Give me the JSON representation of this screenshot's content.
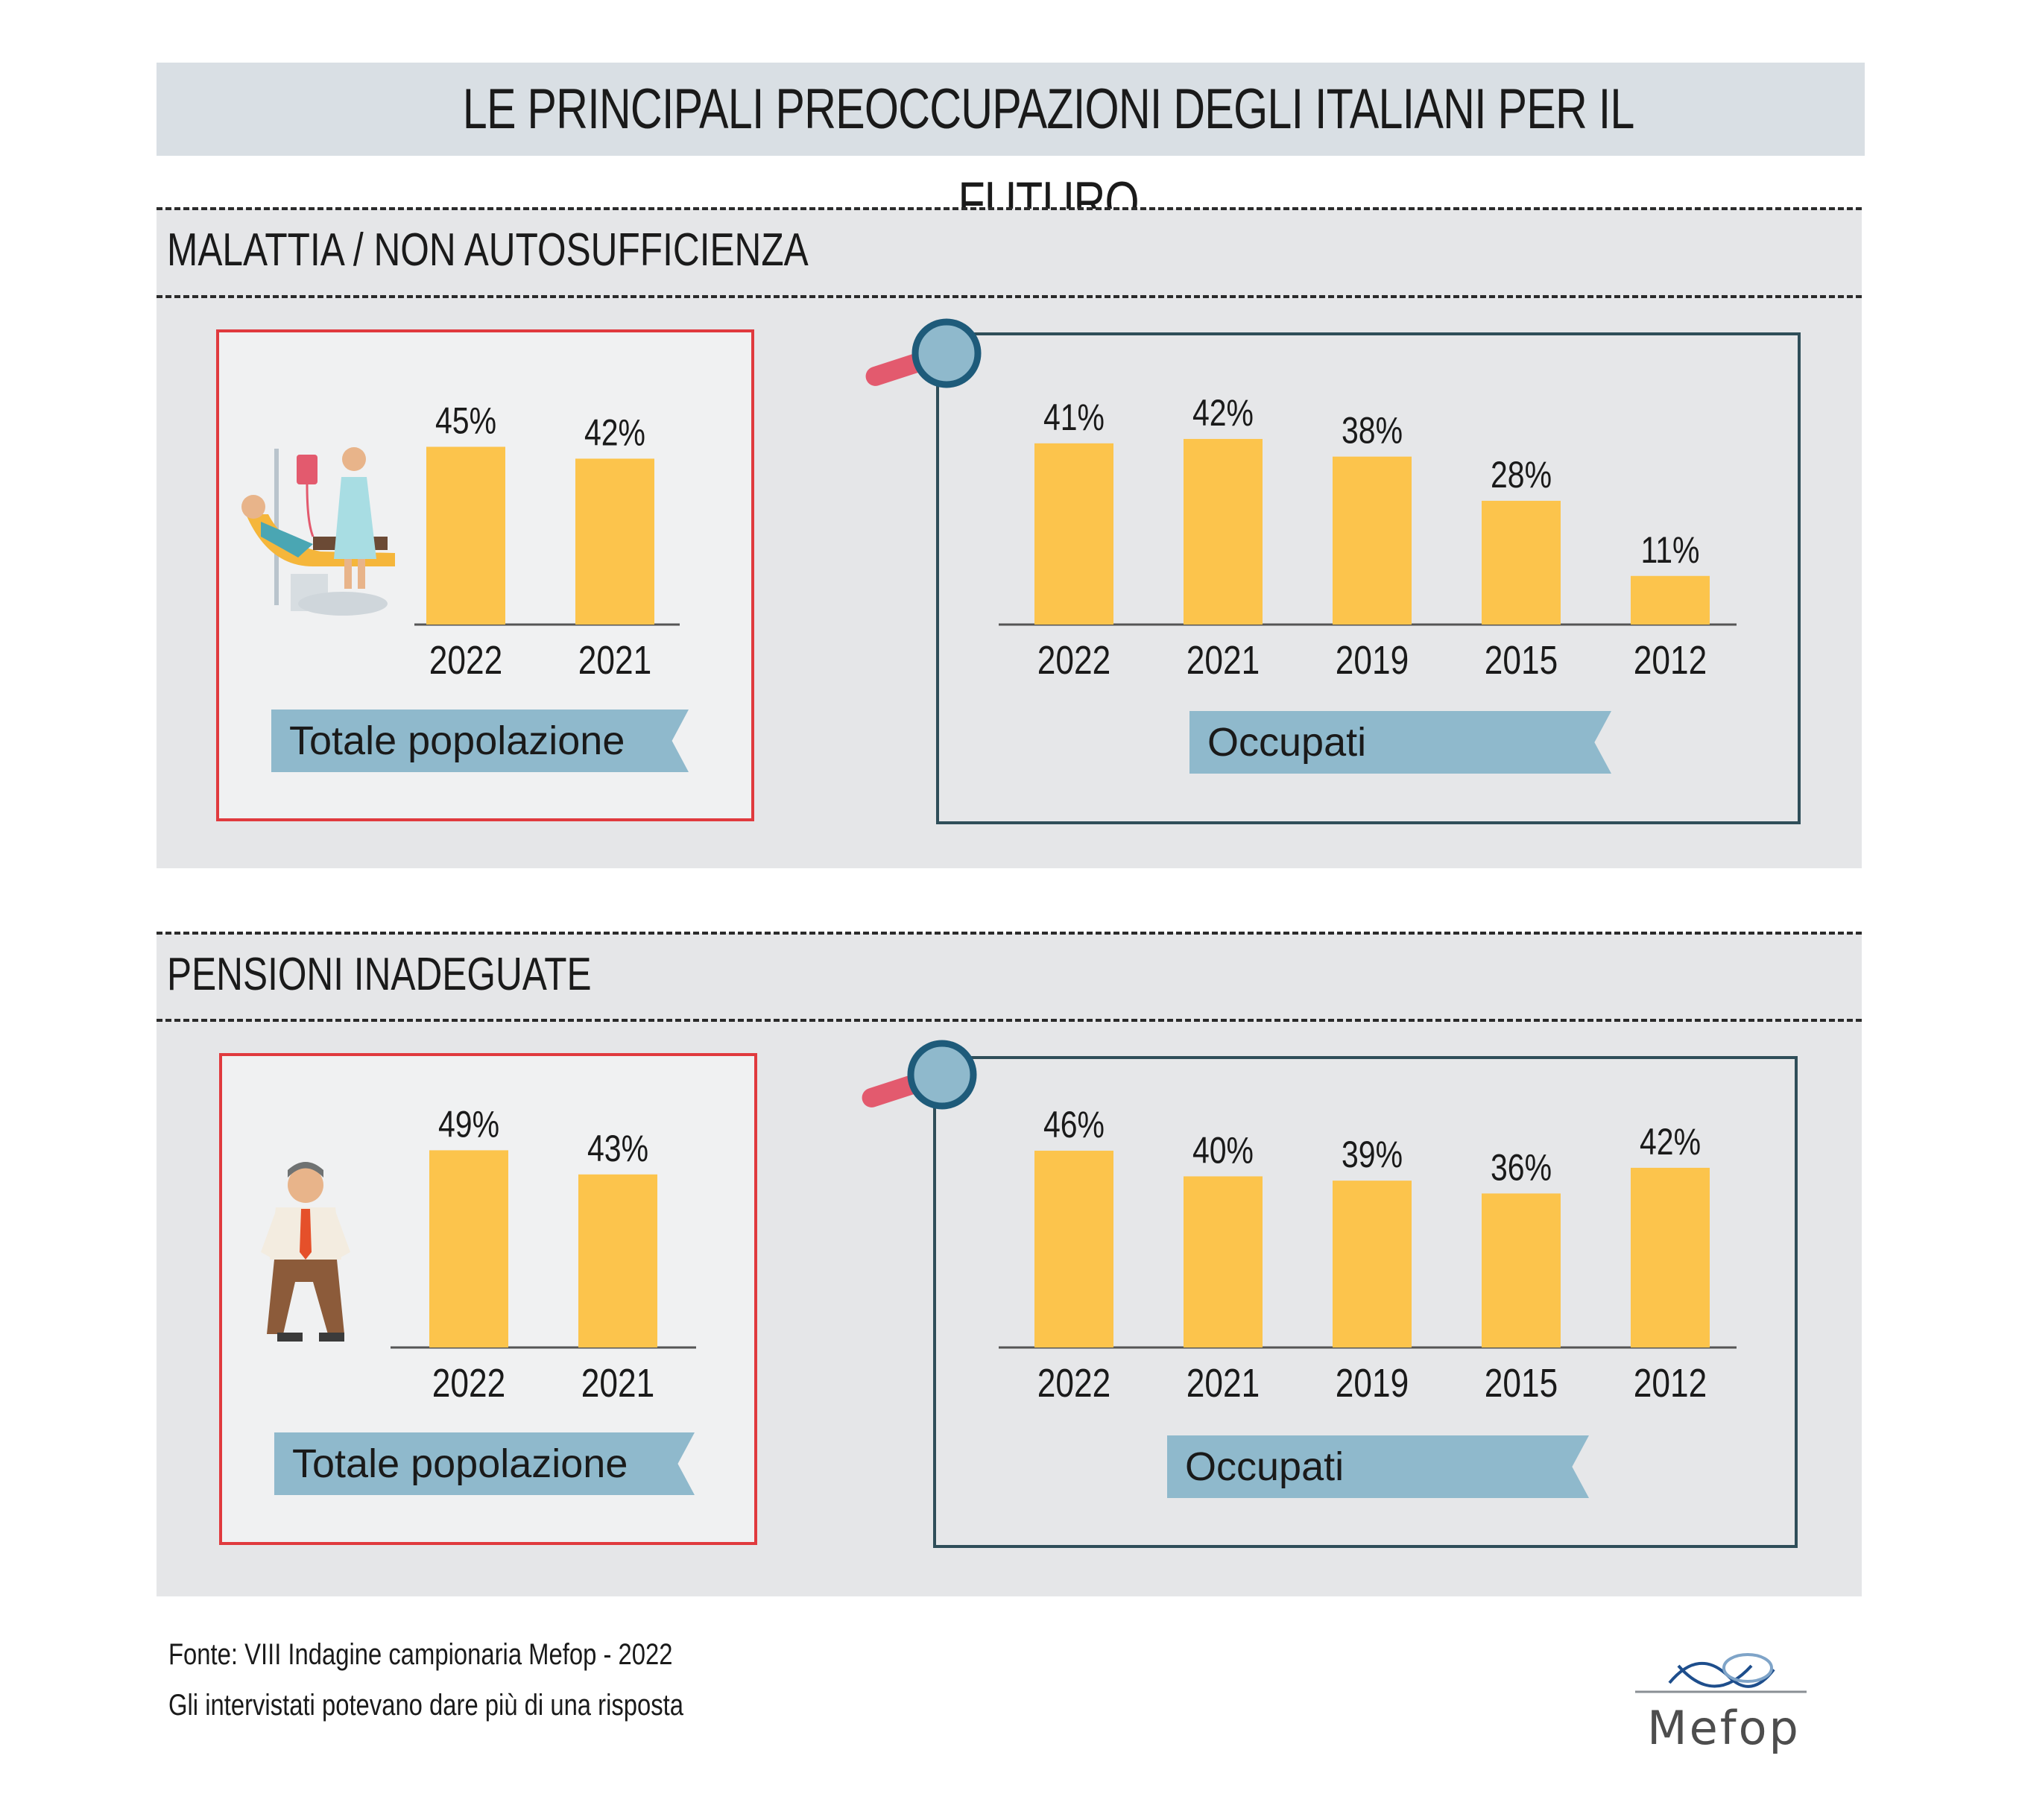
{
  "title": "LE PRINCIPALI PREOCCUPAZIONI DEGLI ITALIANI PER IL FUTURO",
  "sections": [
    {
      "title": "MALATTIA / NON AUTOSUFFICIENZA"
    },
    {
      "title": "PENSIONI INADEGUATE"
    }
  ],
  "chart_data": [
    {
      "type": "bar",
      "section": "MALATTIA / NON AUTOSUFFICIENZA",
      "label": "Totale popolazione",
      "categories": [
        "2022",
        "2021"
      ],
      "values": [
        45,
        42
      ],
      "value_labels": [
        "45%",
        "42%"
      ]
    },
    {
      "type": "bar",
      "section": "MALATTIA / NON AUTOSUFFICIENZA",
      "label": "Occupati",
      "categories": [
        "2022",
        "2021",
        "2019",
        "2015",
        "2012"
      ],
      "values": [
        41,
        42,
        38,
        28,
        11
      ],
      "value_labels": [
        "41%",
        "42%",
        "38%",
        "28%",
        "11%"
      ]
    },
    {
      "type": "bar",
      "section": "PENSIONI INADEGUATE",
      "label": "Totale popolazione",
      "categories": [
        "2022",
        "2021"
      ],
      "values": [
        49,
        43
      ],
      "value_labels": [
        "49%",
        "43%"
      ]
    },
    {
      "type": "bar",
      "section": "PENSIONI INADEGUATE",
      "label": "Occupati",
      "categories": [
        "2022",
        "2021",
        "2019",
        "2015",
        "2012"
      ],
      "values": [
        46,
        40,
        39,
        36,
        42
      ],
      "value_labels": [
        "46%",
        "40%",
        "39%",
        "36%",
        "42%"
      ]
    }
  ],
  "colors": {
    "bar": "#fcc44c",
    "ribbon": "#8fb9cc",
    "red_frame": "#e03a3e",
    "blue_frame": "#2f4e59"
  },
  "footer": {
    "source": "Fonte: VIII Indagine campionaria Mefop - 2022",
    "note": "Gli intervistati potevano dare più di una risposta"
  },
  "logo": {
    "text": "Mefop"
  }
}
